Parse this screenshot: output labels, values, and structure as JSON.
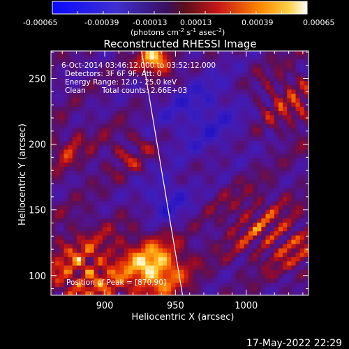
{
  "colorbar": {
    "tick_labels": [
      "-0.00065",
      "-0.00039",
      "-0.00013",
      "0.00013",
      "0.00039",
      "0.00065"
    ],
    "units_label_main": "(photons cm",
    "units_label_exp1": "-2",
    "units_label_mid": " s",
    "units_label_exp2": "-1",
    "units_label_asec": " asec",
    "units_label_exp3": "-2",
    "units_label_close": ")",
    "range": [
      -0.00065,
      0.00065
    ]
  },
  "chart_data": {
    "type": "heatmap",
    "title": "Reconstructed RHESSI Image",
    "xlabel": "Heliocentric X (arcsec)",
    "ylabel": "Heliocentric Y (arcsec)",
    "xlim": [
      862,
      1044
    ],
    "ylim": [
      85,
      271
    ],
    "x_ticks": [
      900,
      950,
      1000
    ],
    "y_ticks": [
      100,
      150,
      200,
      250
    ],
    "limb_line": [
      [
        926,
        271
      ],
      [
        955,
        85
      ]
    ],
    "annotations": {
      "time": "6-Oct-2014 03:46:12.000 to 03:52:12.000",
      "detectors": "Detectors: 3F 6F 9F, Att: 0",
      "energy": "Energy Range: 12.0 - 25.0 keV",
      "clean_label": "Clean",
      "counts": "Total counts: 2.66E+03",
      "peak": "Position of Peak = [870,90]"
    }
  },
  "footer": {
    "timestamp": "17-May-2022 22:29"
  }
}
